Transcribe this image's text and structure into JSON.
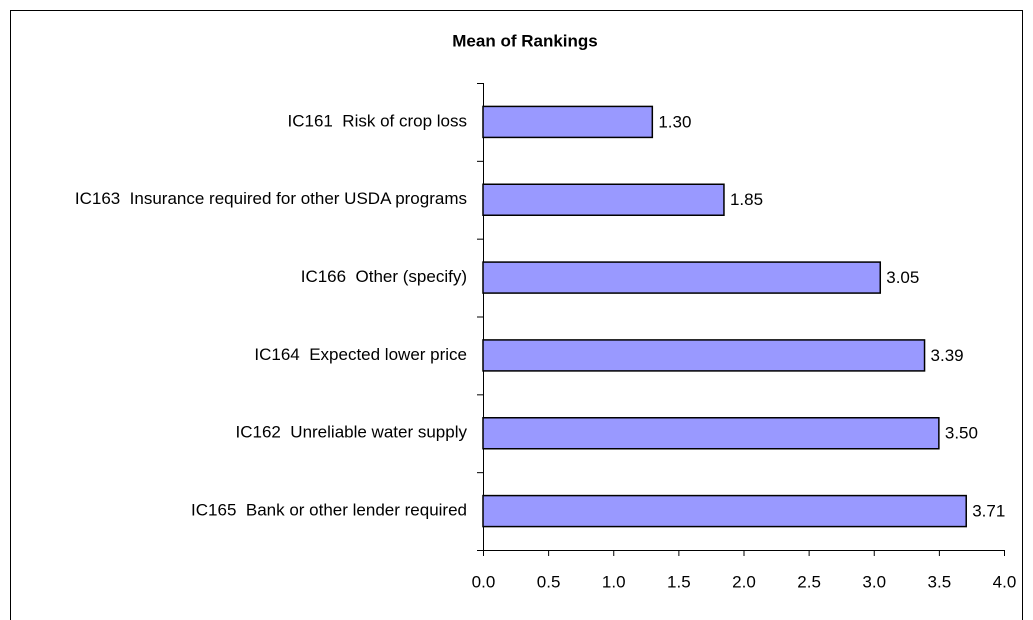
{
  "chart_data": {
    "type": "bar",
    "orientation": "horizontal",
    "title": "Mean of Rankings",
    "categories": [
      "IC161  Risk of crop loss",
      "IC163  Insurance required for other USDA programs",
      "IC166  Other (specify)",
      "IC164  Expected lower price",
      "IC162  Unreliable water supply",
      "IC165  Bank or other lender required"
    ],
    "values": [
      1.3,
      1.85,
      3.05,
      3.39,
      3.5,
      3.71
    ],
    "value_labels": [
      "1.30",
      "1.85",
      "3.05",
      "3.39",
      "3.50",
      "3.71"
    ],
    "color": "#9999ff",
    "xlim": [
      0,
      4
    ],
    "xticks": [
      {
        "value": 0,
        "label": "0.0"
      },
      0.5,
      {
        "value": 1,
        "label": "1.0"
      },
      1.5,
      {
        "value": 2,
        "label": "2.0"
      },
      2.5,
      {
        "value": 3,
        "label": "3.0"
      },
      3.5,
      {
        "value": 4,
        "label": "4.0"
      }
    ],
    "grid": false
  }
}
